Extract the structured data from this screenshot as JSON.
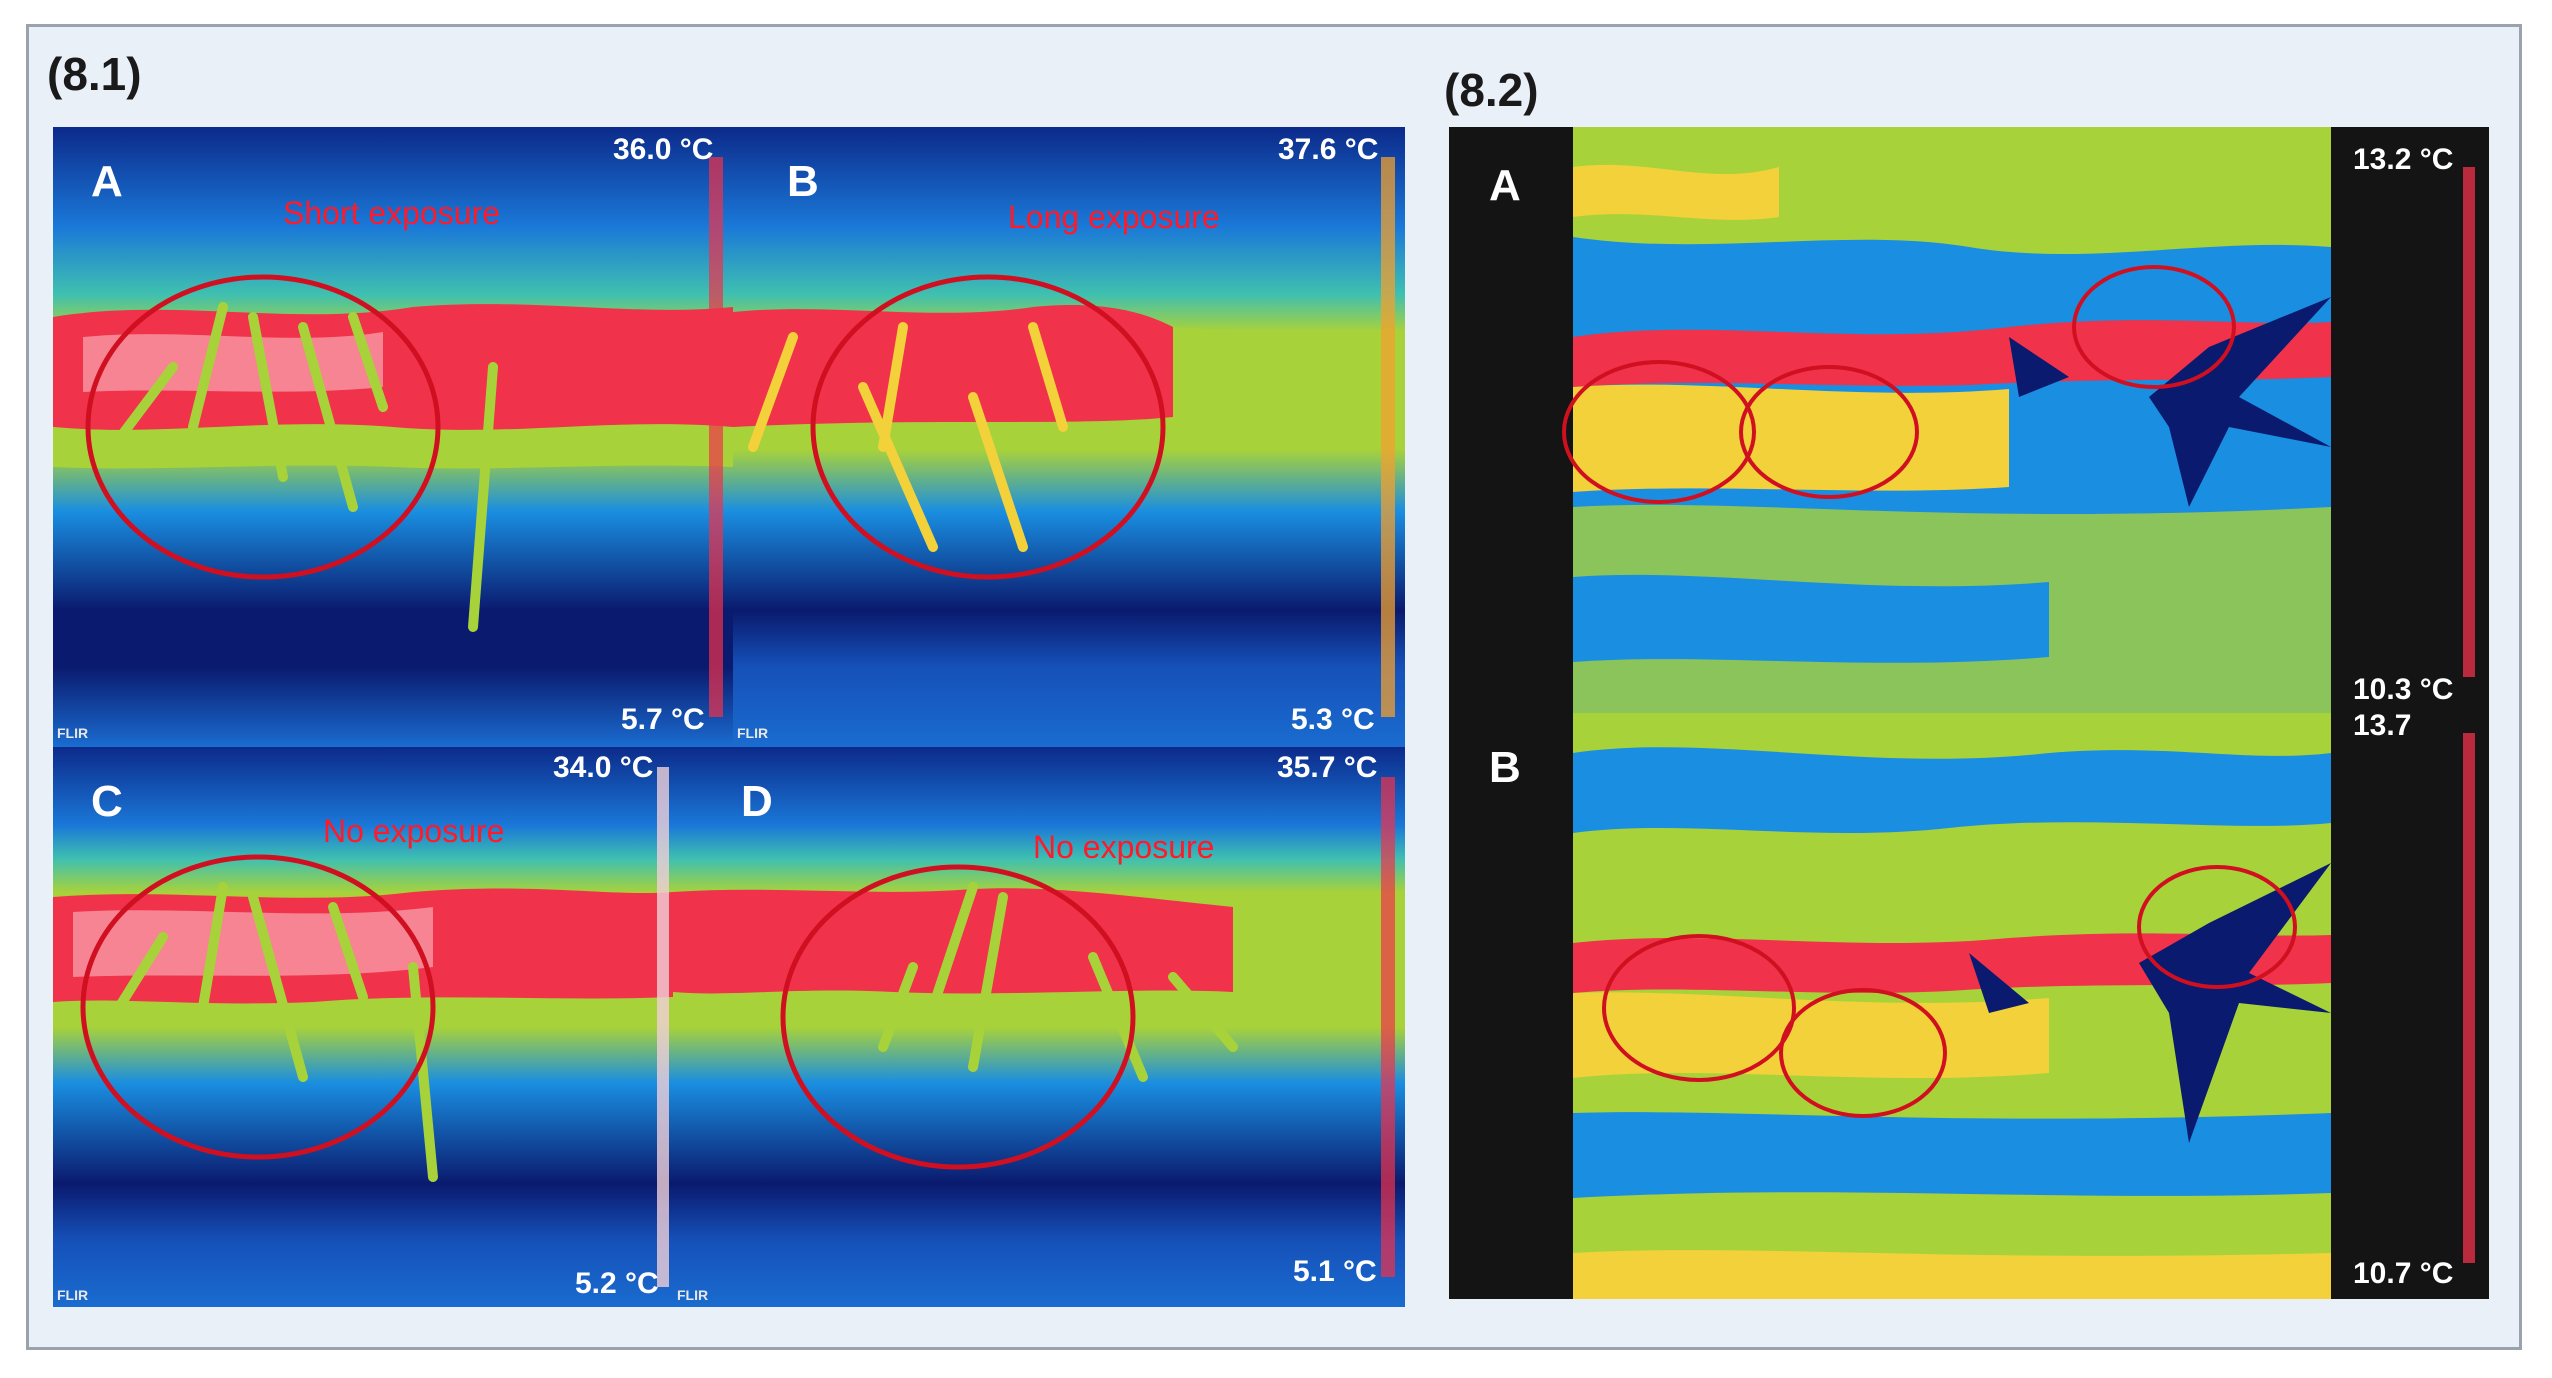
{
  "figure": {
    "section1_label": "(8.1)",
    "section2_label": "(8.2)",
    "panels_8_1": [
      {
        "letter": "A",
        "exposure": "Short exposure",
        "max_temp": "36.0 °C",
        "min_temp": "5.7 °C",
        "flir": "FLIR"
      },
      {
        "letter": "B",
        "exposure": "Long exposure",
        "max_temp": "37.6 °C",
        "min_temp": "5.3 °C",
        "flir": "FLIR"
      },
      {
        "letter": "C",
        "exposure": "No exposure",
        "max_temp": "34.0 °C",
        "min_temp": "5.2 °C",
        "flir": "FLIR"
      },
      {
        "letter": "D",
        "exposure": "No exposure",
        "max_temp": "35.7 °C",
        "min_temp": "5.1 °C",
        "flir": "FLIR"
      }
    ],
    "panels_8_2": [
      {
        "letter": "A",
        "max_temp": "13.2 °C",
        "min_temp": "10.3 °C"
      },
      {
        "letter": "B",
        "max_temp": "13.7",
        "min_temp": "10.7 °C"
      }
    ]
  },
  "colors": {
    "frame_bg": "#eaf0f8",
    "frame_border": "#9aa3ad",
    "circle": "#d01020",
    "label_red": "#ff1a2a",
    "thermal_cold": "#0a1a6e",
    "thermal_mid": "#1a8ee0",
    "thermal_warm": "#9ed23a",
    "thermal_hot": "#f0324a"
  }
}
